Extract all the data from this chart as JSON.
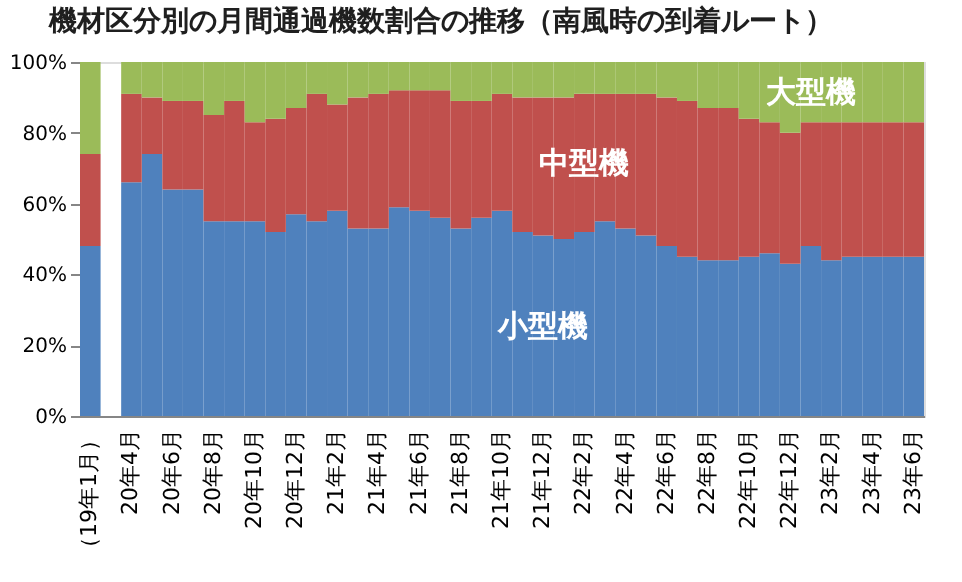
{
  "chart_data": {
    "type": "bar",
    "stacked": true,
    "title": "機材区分別の月間通過機数割合の推移（南風時の到着ルート）",
    "categories": [
      "（19年1月）",
      null,
      "20年4月",
      null,
      "20年6月",
      null,
      "20年8月",
      null,
      "20年10月",
      null,
      "20年12月",
      null,
      "21年2月",
      null,
      "21年4月",
      null,
      "21年6月",
      null,
      "21年8月",
      null,
      "21年10月",
      null,
      "21年12月",
      null,
      "22年2月",
      null,
      "22年4月",
      null,
      "22年6月",
      null,
      "22年8月",
      null,
      "22年10月",
      null,
      "22年12月",
      null,
      "23年2月",
      null,
      "23年4月",
      null,
      "23年6月"
    ],
    "series": [
      {
        "name": "小型機",
        "color": "#4f81bd",
        "values": [
          48,
          null,
          66,
          74,
          64,
          64,
          55,
          55,
          55,
          52,
          57,
          55,
          58,
          53,
          53,
          59,
          58,
          56,
          53,
          56,
          58,
          52,
          51,
          50,
          52,
          55,
          53,
          51,
          48,
          45,
          44,
          44,
          45,
          46,
          43,
          48,
          44,
          45,
          45,
          45,
          45
        ]
      },
      {
        "name": "中型機",
        "color": "#c0504d",
        "values": [
          26,
          null,
          25,
          16,
          25,
          25,
          30,
          34,
          28,
          32,
          30,
          36,
          30,
          37,
          38,
          33,
          34,
          36,
          36,
          33,
          33,
          38,
          39,
          40,
          39,
          36,
          38,
          40,
          42,
          44,
          43,
          43,
          39,
          37,
          37,
          35,
          39,
          38,
          38,
          38,
          38
        ]
      },
      {
        "name": "大型機",
        "color": "#9bbb59",
        "values": [
          26,
          null,
          9,
          10,
          11,
          11,
          15,
          11,
          17,
          16,
          13,
          9,
          12,
          10,
          9,
          8,
          8,
          8,
          11,
          11,
          9,
          10,
          10,
          10,
          9,
          9,
          9,
          9,
          10,
          11,
          13,
          13,
          16,
          17,
          20,
          17,
          17,
          17,
          17,
          17,
          17
        ]
      }
    ],
    "ylim": [
      0,
      100
    ],
    "yticks": [
      {
        "value": 0,
        "label": "0%"
      },
      {
        "value": 20,
        "label": "20%"
      },
      {
        "value": 40,
        "label": "40%"
      },
      {
        "value": 60,
        "label": "60%"
      },
      {
        "value": 80,
        "label": "80%"
      },
      {
        "value": 100,
        "label": "100%"
      }
    ],
    "grid": false,
    "legend": false
  }
}
